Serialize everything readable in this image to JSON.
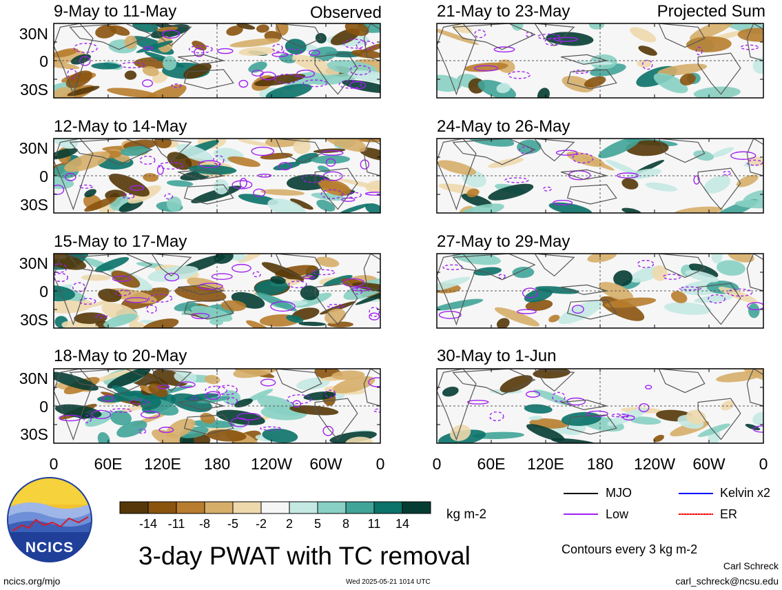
{
  "chart_data": {
    "type": "heatmap",
    "title": "3-day PWAT with TC removal",
    "units": "kg m-2",
    "column_tags": [
      "Observed",
      "Projected Sum"
    ],
    "y_ticks": [
      "30N",
      "0",
      "30S"
    ],
    "x_ticks": [
      "0",
      "60E",
      "120E",
      "180",
      "120W",
      "60W",
      "0"
    ],
    "panels": [
      {
        "title": "9-May to 11-May",
        "column": "Observed"
      },
      {
        "title": "12-May to 14-May",
        "column": "Observed"
      },
      {
        "title": "15-May to 17-May",
        "column": "Observed"
      },
      {
        "title": "18-May to 20-May",
        "column": "Observed"
      },
      {
        "title": "21-May to 23-May",
        "column": "Projected Sum"
      },
      {
        "title": "24-May to 26-May",
        "column": "Projected Sum"
      },
      {
        "title": "27-May to 29-May",
        "column": "Projected Sum"
      },
      {
        "title": "30-May to 1-Jun",
        "column": "Projected Sum"
      }
    ],
    "colorbar": {
      "colors": [
        "#553709",
        "#8a530e",
        "#b87d2e",
        "#d6ae69",
        "#eed9ad",
        "#f6f6f6",
        "#c4e9e3",
        "#88d0c3",
        "#41a499",
        "#0b7269",
        "#063d33"
      ],
      "labels": [
        "-14",
        "-11",
        "-8",
        "-5",
        "-2",
        "2",
        "5",
        "8",
        "11",
        "14"
      ]
    },
    "contour_note": "Contours every 3 kg m-2",
    "legend": [
      {
        "label": "MJO",
        "color": "#000000"
      },
      {
        "label": "Kelvin x2",
        "color": "#0000ff"
      },
      {
        "label": "Low",
        "color": "#a020f0"
      },
      {
        "label": "ER",
        "color": "#ff0000"
      }
    ]
  },
  "logo_text": "NCICS",
  "footer": {
    "site": "ncics.org/mjo",
    "timestamp": "Wed 2025-05-21 1014 UTC",
    "author": "Carl Schreck",
    "email": "carl_schreck@ncsu.edu"
  }
}
